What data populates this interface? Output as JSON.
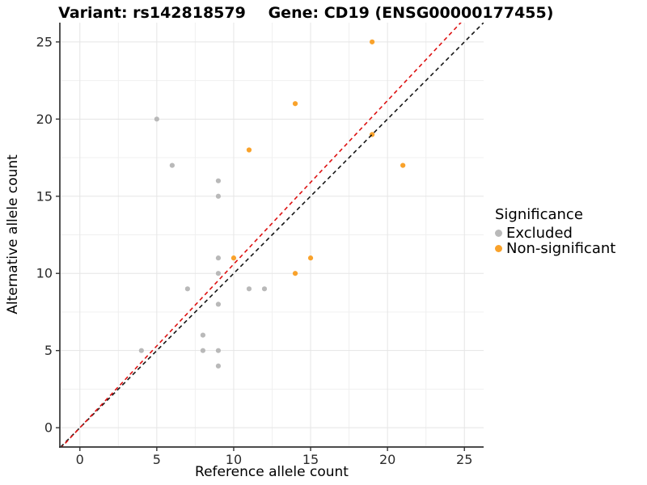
{
  "titles": {
    "left": "Variant: rs142818579",
    "right": "Gene: CD19 (ENSG00000177455)"
  },
  "chart_data": {
    "type": "scatter",
    "xlabel": "Reference allele count",
    "ylabel": "Alternative allele count",
    "xlim": [
      -1.25,
      26.25
    ],
    "ylim": [
      -1.25,
      26.25
    ],
    "xticks": [
      0,
      5,
      10,
      15,
      20,
      25
    ],
    "yticks": [
      0,
      5,
      10,
      15,
      20,
      25
    ],
    "grid": {
      "major_color": "#E5E5E5",
      "minor_color": "#F0F0F0",
      "minor_step": 2.5
    },
    "axis": {
      "line_color": "#333333",
      "tick_color": "#333333",
      "text_color": "#2B2B2B"
    },
    "series": [
      {
        "name": "Excluded",
        "color": "#B9B9B9",
        "points": [
          [
            5,
            20
          ],
          [
            6,
            17
          ],
          [
            9,
            16
          ],
          [
            9,
            15
          ],
          [
            9,
            11
          ],
          [
            9,
            10
          ],
          [
            7,
            9
          ],
          [
            11,
            9
          ],
          [
            12,
            9
          ],
          [
            9,
            8
          ],
          [
            8,
            6
          ],
          [
            4,
            5
          ],
          [
            8,
            5
          ],
          [
            9,
            5
          ],
          [
            9,
            4
          ]
        ]
      },
      {
        "name": "Non-significant",
        "color": "#F9A22B",
        "points": [
          [
            19,
            25
          ],
          [
            14,
            21
          ],
          [
            11,
            18
          ],
          [
            19,
            19
          ],
          [
            21,
            17
          ],
          [
            15,
            11
          ],
          [
            10,
            11
          ],
          [
            14,
            10
          ]
        ]
      }
    ],
    "lines": [
      {
        "name": "identity-line",
        "slope": 1.0,
        "intercept": 0,
        "color": "#161616",
        "dash": "5 4"
      },
      {
        "name": "fit-line",
        "slope": 1.06,
        "intercept": 0,
        "color": "#DD1111",
        "dash": "5 4"
      }
    ],
    "legend": {
      "title": "Significance",
      "position": "right"
    }
  }
}
